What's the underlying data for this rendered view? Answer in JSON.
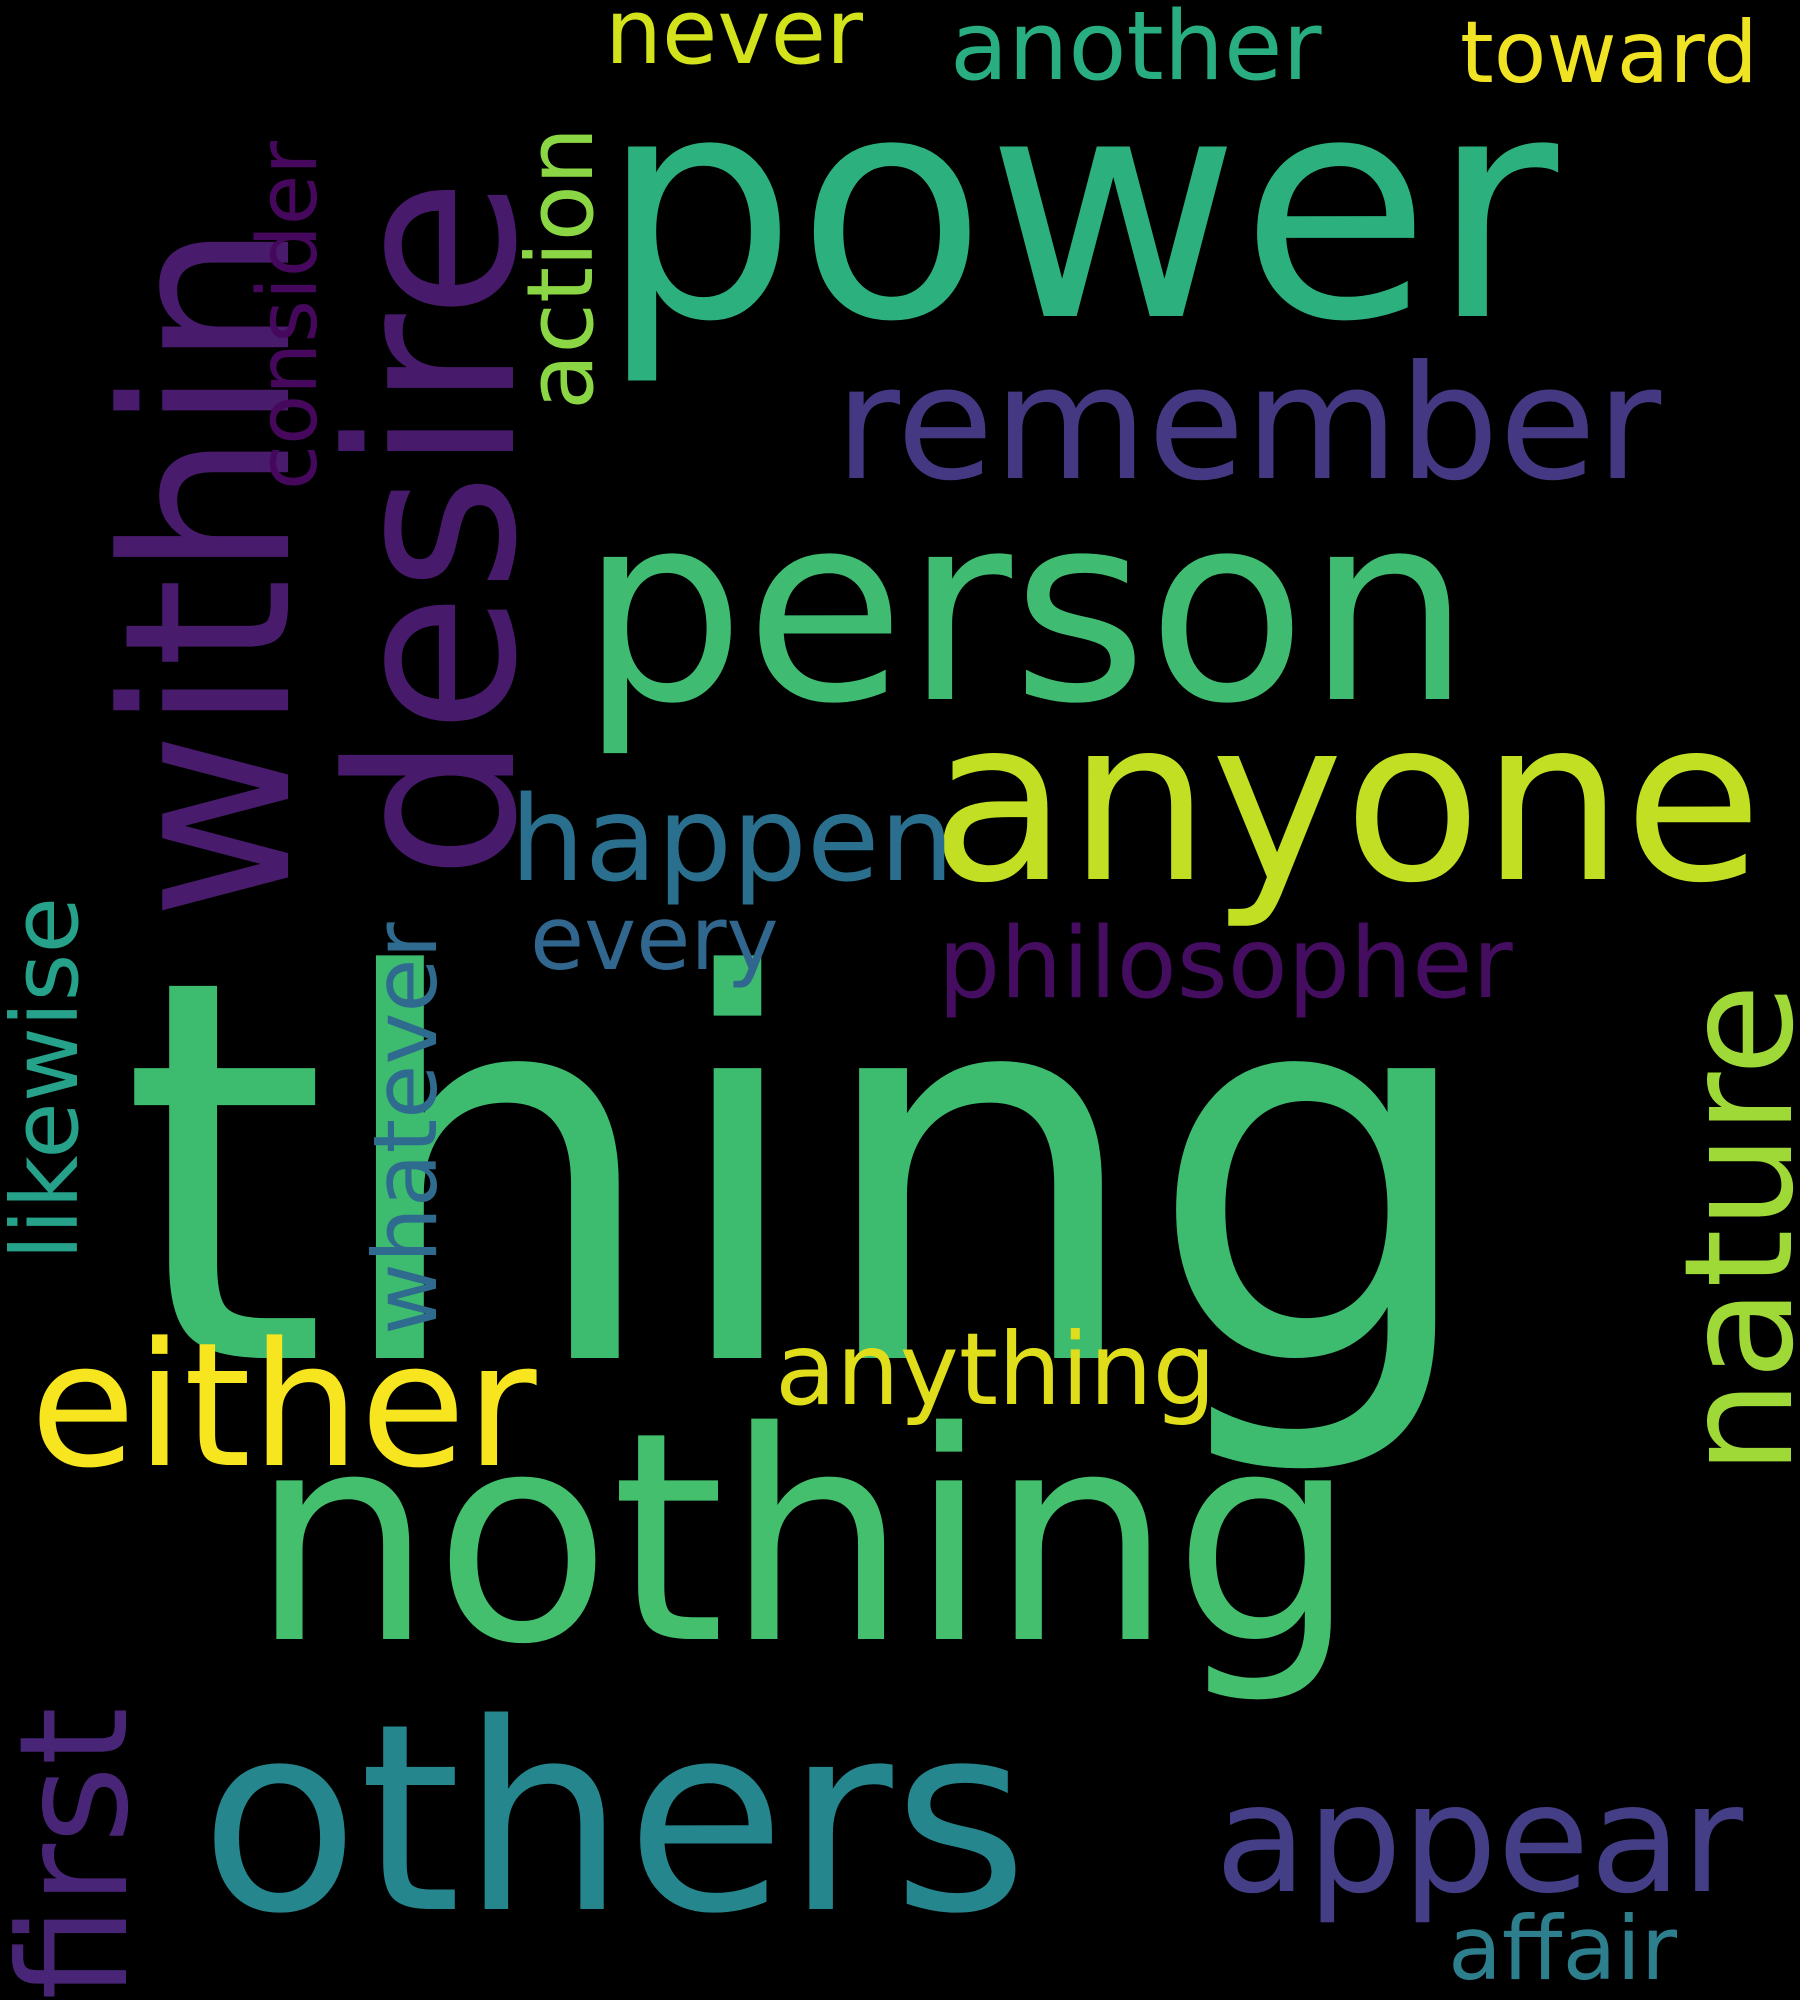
{
  "background_color": "#000000",
  "words": {
    "thing": {
      "text": "thing",
      "color": "#3dbb6f"
    },
    "nothing": {
      "text": "nothing",
      "color": "#44bf6e"
    },
    "power": {
      "text": "power",
      "color": "#2cb17e"
    },
    "person": {
      "text": "person",
      "color": "#40bc72"
    },
    "others": {
      "text": "others",
      "color": "#26868e"
    },
    "anyone": {
      "text": "anyone",
      "color": "#c2df23"
    },
    "either": {
      "text": "either",
      "color": "#f6e51f"
    },
    "remember": {
      "text": "remember",
      "color": "#453882"
    },
    "appear": {
      "text": "appear",
      "color": "#433e85"
    },
    "happen": {
      "text": "happen",
      "color": "#2b6f8e"
    },
    "anything": {
      "text": "anything",
      "color": "#e0dd1b"
    },
    "philosopher": {
      "text": "philosopher",
      "color": "#450d5f"
    },
    "another": {
      "text": "another",
      "color": "#28ae80"
    },
    "toward": {
      "text": "toward",
      "color": "#f0e324"
    },
    "never": {
      "text": "never",
      "color": "#d2e21b"
    },
    "every": {
      "text": "every",
      "color": "#31678e"
    },
    "affair": {
      "text": "affair",
      "color": "#2e7f8e"
    },
    "within": {
      "text": "within",
      "color": "#481b6d"
    },
    "desire": {
      "text": "desire",
      "color": "#481a6c"
    },
    "nature": {
      "text": "nature",
      "color": "#9fd938"
    },
    "first": {
      "text": "first",
      "color": "#482576"
    },
    "likewise": {
      "text": "likewise",
      "color": "#26a18a"
    },
    "whatever": {
      "text": "whatever",
      "color": "#2f6b8e"
    },
    "action": {
      "text": "action",
      "color": "#8ad645"
    },
    "consider": {
      "text": "consider",
      "color": "#46085c"
    }
  }
}
